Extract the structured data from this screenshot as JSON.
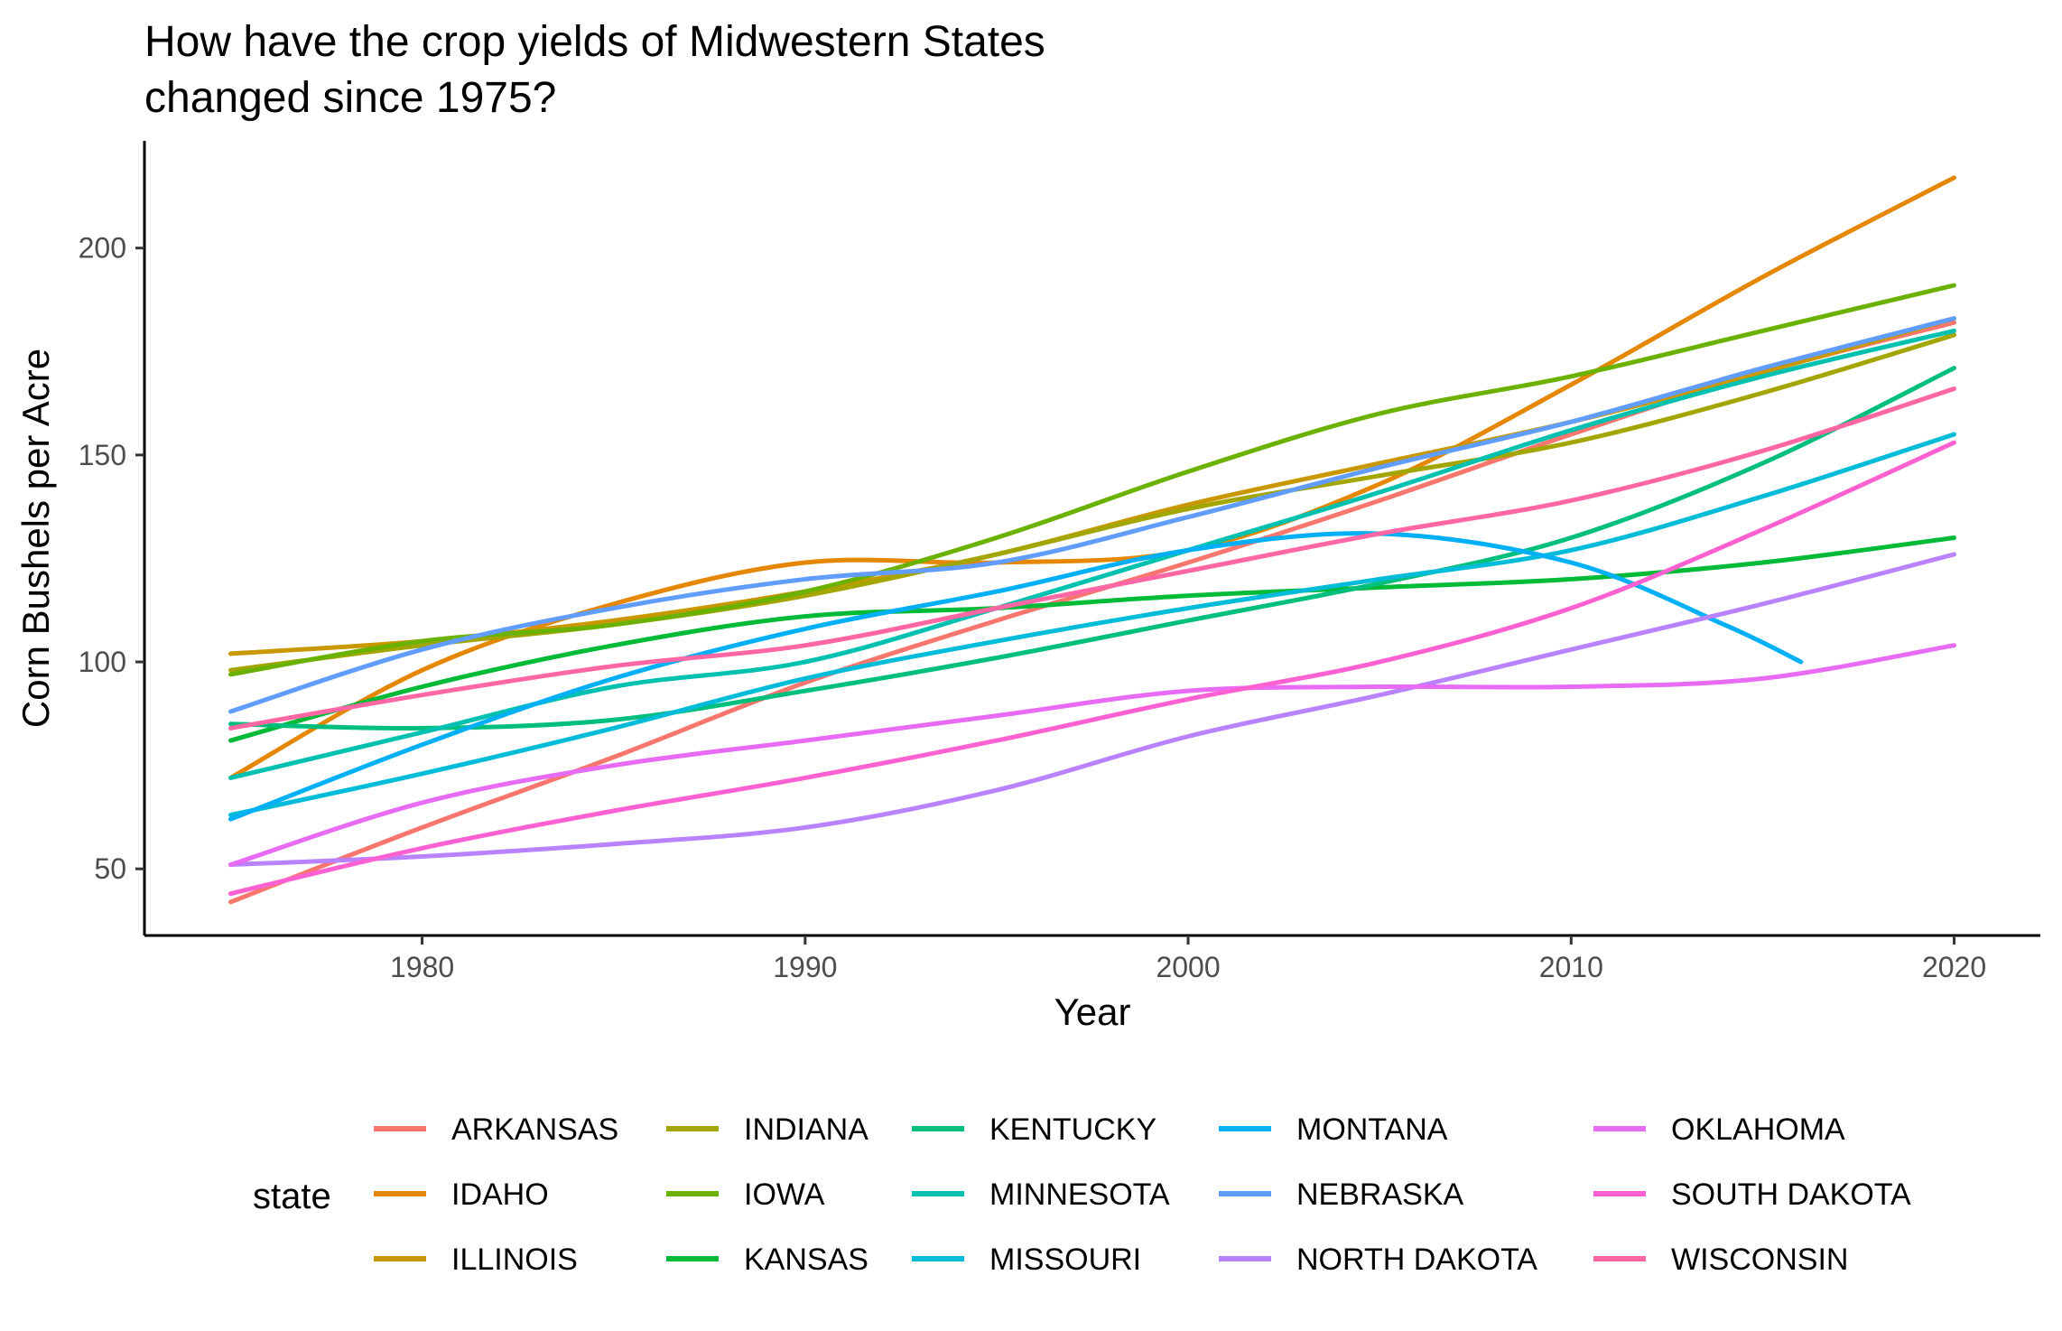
{
  "chart_data": {
    "type": "line",
    "title_lines": [
      "How have the crop yields of Midwestern States",
      "changed since 1975?"
    ],
    "xlabel": "Year",
    "ylabel": "Corn Bushels per Acre",
    "xlim": [
      1972.75,
      2022.25
    ],
    "ylim": [
      33.9,
      225.9
    ],
    "x_ticks": [
      1980,
      1990,
      2000,
      2010,
      2020
    ],
    "y_ticks": [
      50,
      100,
      150,
      200
    ],
    "grid": false,
    "legend": {
      "title": "state",
      "placement": "bottom"
    },
    "series": [
      {
        "name": "ARKANSAS",
        "color": "#F8766D",
        "x": [
          1975,
          1980,
          1985,
          1990,
          1995,
          2000,
          2005,
          2010,
          2015,
          2020
        ],
        "y": [
          42,
          60,
          77,
          95,
          110,
          124,
          139,
          155,
          170,
          182
        ]
      },
      {
        "name": "IDAHO",
        "color": "#E58700",
        "x": [
          1975,
          1980,
          1985,
          1990,
          1995,
          2000,
          2005,
          2010,
          2015,
          2020
        ],
        "y": [
          72,
          98,
          114,
          124,
          124,
          127,
          143,
          167,
          193,
          217
        ]
      },
      {
        "name": "ILLINOIS",
        "color": "#C99800",
        "x": [
          1975,
          1980,
          1985,
          1990,
          1995,
          2000,
          2005,
          2010,
          2015,
          2020
        ],
        "y": [
          102,
          105,
          110,
          117,
          126,
          138,
          148,
          158,
          170,
          183
        ]
      },
      {
        "name": "INDIANA",
        "color": "#A3A500",
        "x": [
          1975,
          1980,
          1985,
          1990,
          1995,
          2000,
          2005,
          2010,
          2015,
          2020
        ],
        "y": [
          98,
          104,
          109,
          116,
          126,
          137,
          145,
          153,
          165,
          179
        ]
      },
      {
        "name": "IOWA",
        "color": "#6BB100",
        "x": [
          1975,
          1980,
          1985,
          1990,
          1995,
          2000,
          2005,
          2010,
          2015,
          2020
        ],
        "y": [
          97,
          105,
          109,
          117,
          130,
          146,
          160,
          169,
          180,
          191
        ]
      },
      {
        "name": "KANSAS",
        "color": "#00BA38",
        "x": [
          1975,
          1980,
          1985,
          1990,
          1995,
          2000,
          2005,
          2010,
          2015,
          2020
        ],
        "y": [
          81,
          94,
          104,
          111,
          113,
          116,
          118,
          120,
          124,
          130
        ]
      },
      {
        "name": "KENTUCKY",
        "color": "#00BF7D",
        "x": [
          1975,
          1980,
          1985,
          1990,
          1995,
          2000,
          2005,
          2010,
          2015,
          2020
        ],
        "y": [
          85,
          84,
          86,
          93,
          101,
          110,
          119,
          130,
          148,
          171
        ]
      },
      {
        "name": "MINNESOTA",
        "color": "#00C0AF",
        "x": [
          1975,
          1980,
          1985,
          1990,
          1995,
          2000,
          2005,
          2010,
          2015,
          2020
        ],
        "y": [
          72,
          83,
          94,
          100,
          113,
          127,
          141,
          156,
          169,
          180
        ]
      },
      {
        "name": "MISSOURI",
        "color": "#00BCD8",
        "x": [
          1975,
          1980,
          1985,
          1990,
          1995,
          2000,
          2005,
          2010,
          2015,
          2020
        ],
        "y": [
          63,
          73,
          84,
          96,
          105,
          113,
          120,
          127,
          140,
          155
        ]
      },
      {
        "name": "MONTANA",
        "color": "#00B0F6",
        "x": [
          1975,
          1980,
          1985,
          1990,
          1995,
          2000,
          2005,
          2010,
          2014,
          2016
        ],
        "y": [
          62,
          80,
          96,
          108,
          117,
          127,
          131,
          124,
          109,
          100
        ]
      },
      {
        "name": "NEBRASKA",
        "color": "#619CFF",
        "x": [
          1975,
          1980,
          1985,
          1990,
          1995,
          2000,
          2005,
          2010,
          2015,
          2020
        ],
        "y": [
          88,
          103,
          113,
          120,
          124,
          135,
          147,
          158,
          171,
          183
        ]
      },
      {
        "name": "NORTH DAKOTA",
        "color": "#B983FF",
        "x": [
          1975,
          1980,
          1985,
          1990,
          1995,
          2000,
          2005,
          2010,
          2015,
          2020
        ],
        "y": [
          51,
          53,
          56,
          60,
          69,
          82,
          92,
          103,
          114,
          126
        ]
      },
      {
        "name": "OKLAHOMA",
        "color": "#E76BF3",
        "x": [
          1975,
          1980,
          1985,
          1990,
          1995,
          2000,
          2005,
          2010,
          2015,
          2020
        ],
        "y": [
          51,
          66,
          75,
          81,
          87,
          93,
          94,
          94,
          96,
          104
        ]
      },
      {
        "name": "SOUTH DAKOTA",
        "color": "#FD61D1",
        "x": [
          1975,
          1980,
          1985,
          1990,
          1995,
          2000,
          2005,
          2010,
          2015,
          2020
        ],
        "y": [
          44,
          55,
          64,
          72,
          81,
          91,
          100,
          113,
          132,
          153
        ]
      },
      {
        "name": "WISCONSIN",
        "color": "#FF67A4",
        "x": [
          1975,
          1980,
          1985,
          1990,
          1995,
          2000,
          2005,
          2010,
          2015,
          2020
        ],
        "y": [
          84,
          92,
          99,
          104,
          113,
          122,
          131,
          139,
          151,
          166
        ]
      }
    ]
  }
}
